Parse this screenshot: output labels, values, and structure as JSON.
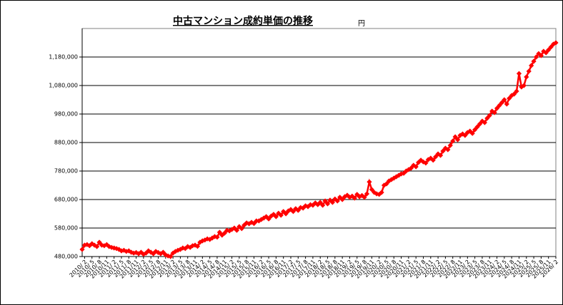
{
  "chart_data": {
    "type": "line",
    "title": "中古マンション成約単価の推移",
    "unit": "円",
    "color": "#ff0000",
    "grid": true,
    "ylim": [
      480000,
      1280000
    ],
    "yticks": [
      {
        "value": 480000,
        "label": "480,000"
      },
      {
        "value": 580000,
        "label": "580,000"
      },
      {
        "value": 680000,
        "label": "680,000"
      },
      {
        "value": 780000,
        "label": "780,000"
      },
      {
        "value": 880000,
        "label": "880,000"
      },
      {
        "value": 980000,
        "label": "980,000"
      },
      {
        "value": 1080000,
        "label": "1,080,000"
      },
      {
        "value": 1180000,
        "label": "1,180,000"
      }
    ],
    "categories": [
      null,
      "2010/ 2",
      null,
      null,
      "2010/ 5",
      null,
      null,
      "2010/ 8",
      null,
      null,
      "2010/11",
      null,
      null,
      "2011/ 2",
      null,
      null,
      "2011/ 5",
      null,
      null,
      "2011/ 8",
      null,
      null,
      "2011/11",
      null,
      null,
      "2012/ 2",
      null,
      null,
      "2012/ 5",
      null,
      null,
      "2012/ 8",
      null,
      null,
      "2012/11",
      null,
      null,
      "2013/ 2",
      null,
      null,
      "2013/ 5",
      null,
      null,
      "2013/ 8",
      null,
      null,
      "2013/11",
      null,
      null,
      "2014/ 2",
      null,
      null,
      "2014/ 5",
      null,
      null,
      "2014/ 8",
      null,
      null,
      "2014/11",
      null,
      null,
      "2015/ 2",
      null,
      null,
      "2015/ 5",
      null,
      null,
      "2015/ 8",
      null,
      null,
      "2015/11",
      null,
      null,
      "2016/ 2",
      null,
      null,
      "2016/ 5",
      null,
      null,
      "2016/ 8",
      null,
      null,
      "2016/11",
      null,
      null,
      "2017/ 2",
      null,
      null,
      "2017/ 5",
      null,
      null,
      "2017/ 8",
      null,
      null,
      "2017/11",
      null,
      null,
      "2018/ 2",
      null,
      null,
      "2018/ 5",
      null,
      null,
      "2018/ 8",
      null,
      null,
      "2018/11",
      null,
      null,
      "2019/ 2",
      null,
      null,
      "2019/ 5",
      null,
      null,
      "2019/ 8",
      null,
      null,
      "2019/11",
      null,
      null,
      "2020/ 2",
      null,
      null,
      "2020/ 5",
      null,
      null,
      "2020/ 8",
      null,
      null,
      "2020/11",
      null,
      null,
      "2021/ 2",
      null,
      null,
      "2021/ 5",
      null,
      null,
      "2021/ 8",
      null,
      null,
      "2021/11",
      null,
      null,
      "2022/ 2",
      null,
      null,
      "2022/ 5",
      null,
      null,
      "2022/ 8",
      null,
      null,
      "2022/11",
      null,
      null,
      "2023/ 2",
      null,
      null,
      "2023/ 5",
      null,
      null,
      "2023/ 8",
      null,
      null,
      "2023/11",
      null,
      null,
      "2024/ 2",
      null,
      null,
      "2024/ 5",
      null,
      null,
      "2024/ 8",
      null,
      null,
      "2024/11",
      null,
      null,
      "2025/ 2",
      null,
      null,
      "2025/ 5",
      null,
      null,
      "2025/ 8",
      null,
      null,
      "2025/11",
      null,
      null,
      "2026/ 2"
    ],
    "values": [
      505000,
      520000,
      522000,
      518000,
      525000,
      520000,
      515000,
      530000,
      520000,
      518000,
      522000,
      515000,
      512000,
      510000,
      508000,
      505000,
      500000,
      502000,
      498000,
      500000,
      495000,
      492000,
      494000,
      490000,
      495000,
      488000,
      492000,
      500000,
      495000,
      490000,
      498000,
      494000,
      490000,
      495000,
      486000,
      482000,
      480000,
      492000,
      498000,
      502000,
      505000,
      510000,
      508000,
      515000,
      512000,
      518000,
      520000,
      516000,
      530000,
      535000,
      538000,
      542000,
      540000,
      545000,
      550000,
      548000,
      565000,
      555000,
      562000,
      572000,
      570000,
      575000,
      580000,
      572000,
      585000,
      578000,
      590000,
      598000,
      595000,
      600000,
      596000,
      605000,
      605000,
      610000,
      615000,
      620000,
      612000,
      622000,
      628000,
      620000,
      632000,
      625000,
      638000,
      630000,
      640000,
      645000,
      638000,
      648000,
      642000,
      652000,
      650000,
      658000,
      655000,
      662000,
      660000,
      668000,
      662000,
      670000,
      660000,
      675000,
      665000,
      678000,
      670000,
      682000,
      675000,
      688000,
      680000,
      690000,
      695000,
      688000,
      692000,
      685000,
      698000,
      690000,
      694000,
      688000,
      700000,
      742000,
      715000,
      705000,
      700000,
      698000,
      705000,
      730000,
      735000,
      745000,
      750000,
      755000,
      760000,
      765000,
      770000,
      772000,
      780000,
      785000,
      790000,
      800000,
      795000,
      810000,
      818000,
      812000,
      808000,
      820000,
      825000,
      818000,
      830000,
      840000,
      835000,
      850000,
      860000,
      855000,
      870000,
      885000,
      900000,
      890000,
      905000,
      910000,
      905000,
      915000,
      920000,
      912000,
      925000,
      935000,
      945000,
      955000,
      950000,
      965000,
      975000,
      990000,
      985000,
      1000000,
      1010000,
      1020000,
      1030000,
      1015000,
      1035000,
      1045000,
      1050000,
      1060000,
      1122000,
      1075000,
      1080000,
      1110000,
      1130000,
      1150000,
      1165000,
      1180000,
      1192000,
      1185000,
      1200000,
      1195000,
      1205000,
      1215000,
      1225000,
      1230000
    ]
  }
}
